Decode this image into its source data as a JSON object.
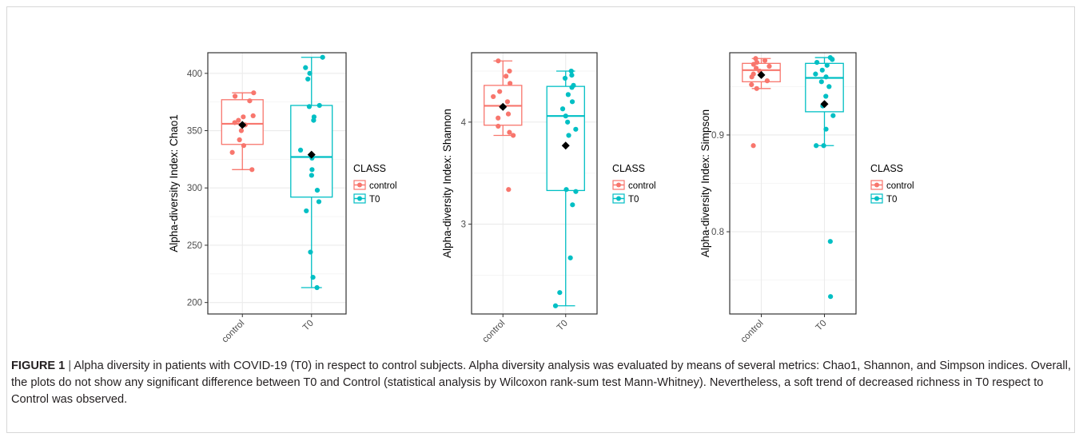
{
  "colors": {
    "control": "#F8766D",
    "T0": "#00BFC4",
    "mean_marker": "#000000",
    "panel_border": "#333333",
    "grid_major": "#EBEBEB"
  },
  "legend": {
    "title": "CLASS",
    "items": [
      "control",
      "T0"
    ]
  },
  "chart_data": [
    {
      "type": "box",
      "ylabel": "Alpha-diversity Index: Chao1",
      "categories": [
        "control",
        "T0"
      ],
      "ylim": [
        190,
        418
      ],
      "yticks": [
        200,
        250,
        300,
        350,
        400
      ],
      "ytick_labels": [
        "200",
        "250",
        "300",
        "350",
        "400"
      ],
      "grid": true,
      "legend_position": "right",
      "series": [
        {
          "category": "control",
          "whisker_low": 316,
          "q1": 338,
          "median": 356,
          "q3": 377,
          "whisker_high": 383,
          "mean": 355,
          "points": [
            316,
            331,
            337,
            342,
            350,
            355,
            357,
            359,
            362,
            363,
            376,
            380,
            383
          ]
        },
        {
          "category": "T0",
          "whisker_low": 213,
          "q1": 292,
          "median": 327,
          "q3": 372,
          "whisker_high": 414,
          "mean": 329,
          "points": [
            213,
            222,
            244,
            280,
            288,
            298,
            311,
            316,
            326,
            333,
            359,
            362,
            371,
            372,
            395,
            400,
            405,
            414
          ]
        }
      ]
    },
    {
      "type": "box",
      "ylabel": "Alpha-diversity Index: Shannon",
      "categories": [
        "control",
        "T0"
      ],
      "ylim": [
        2.12,
        4.68
      ],
      "yticks": [
        3,
        4
      ],
      "ytick_labels": [
        "3",
        "4"
      ],
      "grid": true,
      "legend_position": "right",
      "series": [
        {
          "category": "control",
          "whisker_low": 3.87,
          "q1": 3.97,
          "median": 4.16,
          "q3": 4.36,
          "whisker_high": 4.6,
          "mean": 4.15,
          "points": [
            3.34,
            3.87,
            3.9,
            3.96,
            4.04,
            4.08,
            4.15,
            4.2,
            4.25,
            4.3,
            4.38,
            4.45,
            4.5,
            4.6
          ]
        },
        {
          "category": "T0",
          "whisker_low": 2.2,
          "q1": 3.33,
          "median": 4.06,
          "q3": 4.35,
          "whisker_high": 4.5,
          "mean": 3.77,
          "points": [
            2.2,
            2.33,
            2.67,
            3.19,
            3.32,
            3.34,
            3.87,
            3.93,
            4.0,
            4.06,
            4.13,
            4.2,
            4.27,
            4.34,
            4.36,
            4.43,
            4.46,
            4.5
          ]
        }
      ]
    },
    {
      "type": "box",
      "ylabel": "Alpha-diversity Index: Simpson",
      "categories": [
        "control",
        "T0"
      ],
      "ylim": [
        0.715,
        0.985
      ],
      "yticks": [
        0.8,
        0.9
      ],
      "ytick_labels": [
        "0.8",
        "0.9"
      ],
      "grid": true,
      "legend_position": "right",
      "series": [
        {
          "category": "control",
          "whisker_low": 0.948,
          "q1": 0.955,
          "median": 0.967,
          "q3": 0.974,
          "whisker_high": 0.979,
          "mean": 0.962,
          "points": [
            0.889,
            0.948,
            0.952,
            0.956,
            0.96,
            0.963,
            0.966,
            0.969,
            0.971,
            0.973,
            0.975,
            0.977,
            0.979
          ]
        },
        {
          "category": "T0",
          "whisker_low": 0.889,
          "q1": 0.924,
          "median": 0.959,
          "q3": 0.974,
          "whisker_high": 0.98,
          "mean": 0.932,
          "points": [
            0.733,
            0.79,
            0.889,
            0.889,
            0.906,
            0.92,
            0.93,
            0.94,
            0.95,
            0.955,
            0.96,
            0.963,
            0.967,
            0.972,
            0.975,
            0.978,
            0.98
          ]
        }
      ]
    }
  ],
  "caption": {
    "label": "FIGURE 1",
    "separator": "|",
    "text": "Alpha diversity in patients with COVID-19 (T0) in respect to control subjects. Alpha diversity analysis was evaluated by means of several metrics: Chao1, Shannon, and Simpson indices. Overall, the plots do not show any significant difference between T0 and Control (statistical analysis by Wilcoxon rank-sum test Mann-Whitney). Nevertheless, a soft trend of decreased richness in T0 respect to Control was observed."
  }
}
